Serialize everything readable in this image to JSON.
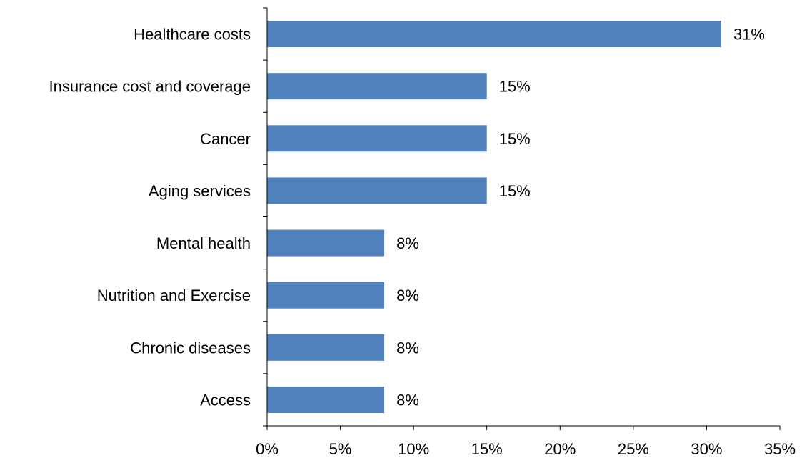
{
  "chart_data": {
    "type": "bar",
    "orientation": "horizontal",
    "title": "",
    "xlabel": "",
    "ylabel": "",
    "categories": [
      "Healthcare costs",
      "Insurance cost and coverage",
      "Cancer",
      "Aging services",
      "Mental health",
      "Nutrition and Exercise",
      "Chronic diseases",
      "Access"
    ],
    "values": [
      31,
      15,
      15,
      15,
      8,
      8,
      8,
      8
    ],
    "value_labels": [
      "31%",
      "15%",
      "15%",
      "15%",
      "8%",
      "8%",
      "8%",
      "8%"
    ],
    "xlim": [
      0,
      35
    ],
    "x_ticks": [
      0,
      5,
      10,
      15,
      20,
      25,
      30,
      35
    ],
    "x_tick_labels": [
      "0%",
      "5%",
      "10%",
      "15%",
      "20%",
      "25%",
      "30%",
      "35%"
    ],
    "grid": false,
    "legend": "none",
    "bar_color": "#4F81BD",
    "axis_color": "#000000"
  }
}
